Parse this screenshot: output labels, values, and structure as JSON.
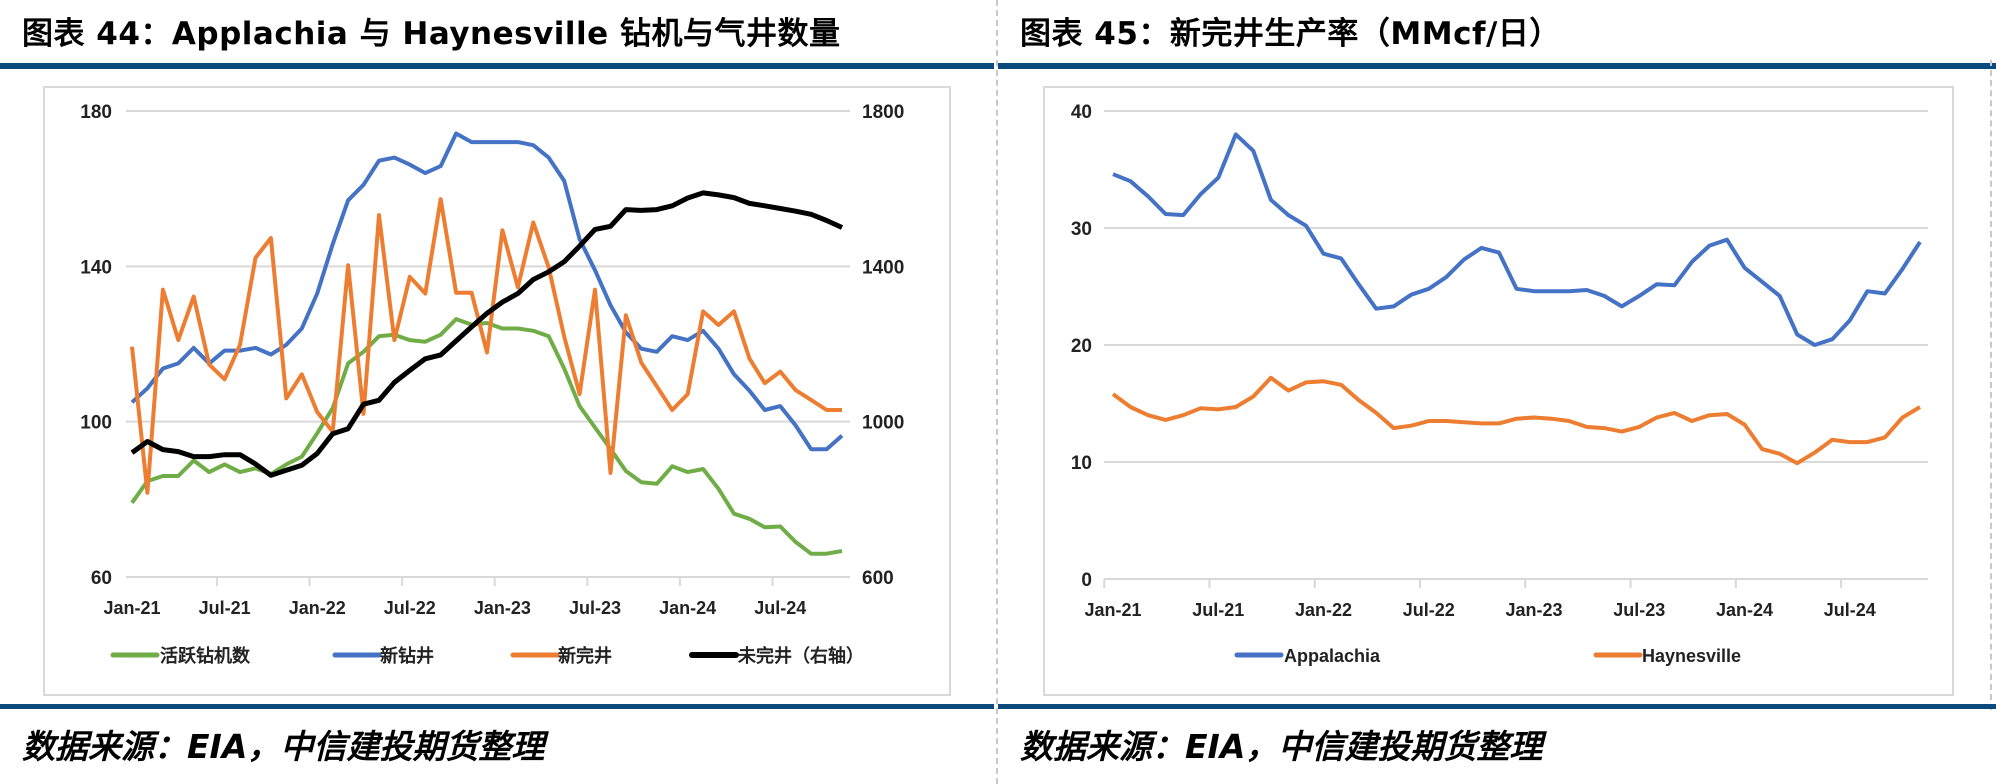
{
  "left_title": "图表 44：Applachia 与 Haynesville 钻机与气井数量",
  "right_title": "图表 45：新完井生产率（MMcf/日）",
  "left_footer": "数据来源：EIA，中信建投期货整理",
  "right_footer": "数据来源：EIA，中信建投期货整理",
  "colors": {
    "accent": "#0b4a7c",
    "green": "#70ad47",
    "blue": "#4472c4",
    "orange": "#ed7d31",
    "black": "#000000"
  },
  "chart_data": [
    {
      "type": "line",
      "title": "Applachia 与 Haynesville 钻机与气井数量",
      "x_start": "Jan-21",
      "n_points": 47,
      "x_tick_labels": [
        "Jan-21",
        "Jul-21",
        "Jan-22",
        "Jul-22",
        "Jan-23",
        "Jul-23",
        "Jan-24",
        "Jul-24"
      ],
      "ylim": [
        60,
        180
      ],
      "y_ticks": [
        "180",
        "140",
        "100",
        "60"
      ],
      "y2lim": [
        600,
        1800
      ],
      "y2_ticks": [
        "1800",
        "1400",
        "1000",
        "600"
      ],
      "grid": true,
      "legend": "bottom",
      "series": [
        {
          "name": "活跃钻机数",
          "axis": "left",
          "color": "#70ad47",
          "values": [
            79.1,
            84.7,
            86,
            86,
            90,
            87,
            89,
            87,
            88,
            86.5,
            89,
            91,
            97,
            103.5,
            115,
            118,
            122,
            122.4,
            121,
            120.6,
            122.4,
            126.4,
            125,
            125.4,
            124,
            124,
            123.4,
            122,
            113.7,
            104,
            98.5,
            93,
            87.3,
            84.4,
            84,
            88.5,
            87,
            87.8,
            82.7,
            76.3,
            75,
            72.8,
            73,
            69,
            66,
            66,
            66.7
          ]
        },
        {
          "name": "新钻井",
          "axis": "left",
          "color": "#4472c4",
          "values": [
            105,
            108.6,
            113.7,
            115,
            119,
            115,
            118.3,
            118.3,
            119,
            117.3,
            119.8,
            124,
            133,
            145.7,
            157,
            161,
            167.2,
            168,
            166.2,
            164,
            165.8,
            174.2,
            172,
            172,
            172,
            172,
            171.2,
            168,
            162,
            147,
            139,
            130,
            123,
            118.8,
            118,
            122,
            121,
            123.4,
            118.8,
            112.2,
            108,
            103,
            104,
            99,
            92.9,
            92.9,
            96.4
          ]
        },
        {
          "name": "新完井",
          "axis": "left",
          "color": "#ed7d31",
          "values": [
            119.3,
            81.7,
            134,
            121,
            132.2,
            114.7,
            110.9,
            119.8,
            142.2,
            147.3,
            106,
            112.2,
            102.5,
            97.4,
            140.3,
            102,
            153.2,
            121,
            137.3,
            133,
            157.3,
            133.2,
            133.2,
            117.8,
            149.3,
            134.6,
            151.3,
            139.7,
            121.9,
            107.1,
            134,
            86.8,
            127.4,
            115.2,
            109.1,
            103,
            107.1,
            128.4,
            124.9,
            128.4,
            116.3,
            109.9,
            112.9,
            108.1,
            105.6,
            103,
            103
          ]
        },
        {
          "name": "未完井（右轴）",
          "axis": "right",
          "color": "#000000",
          "values": [
            920,
            949,
            928,
            923,
            910,
            910,
            915,
            915,
            891,
            862,
            875,
            888,
            918,
            969,
            982,
            1045,
            1055,
            1101,
            1132,
            1162,
            1172,
            1208,
            1244,
            1279,
            1308,
            1330,
            1366,
            1386,
            1412,
            1452,
            1495,
            1503,
            1546,
            1544,
            1546,
            1556,
            1576,
            1589,
            1584,
            1577,
            1562,
            1556,
            1549,
            1542,
            1534,
            1518,
            1500
          ]
        }
      ]
    },
    {
      "type": "line",
      "title": "新完井生产率（MMcf/日）",
      "x_start": "Jan-21",
      "n_points": 47,
      "x_tick_labels": [
        "Jan-21",
        "Jul-21",
        "Jan-22",
        "Jul-22",
        "Jan-23",
        "Jul-23",
        "Jan-24",
        "Jul-24"
      ],
      "ylim": [
        0,
        40
      ],
      "y_ticks": [
        "40",
        "30",
        "20",
        "10",
        "0"
      ],
      "grid": true,
      "legend": "bottom",
      "series": [
        {
          "name": "Appalachia",
          "color": "#4472c4",
          "values": [
            34.6,
            34.0,
            32.7,
            31.2,
            31.1,
            32.9,
            34.3,
            38.0,
            36.6,
            32.4,
            31.1,
            30.2,
            27.8,
            27.4,
            25.2,
            23.1,
            23.3,
            24.3,
            24.8,
            25.8,
            27.3,
            28.3,
            27.9,
            24.8,
            24.6,
            24.6,
            24.6,
            24.7,
            24.2,
            23.3,
            24.2,
            25.2,
            25.1,
            27.1,
            28.5,
            29.0,
            26.6,
            25.4,
            24.2,
            20.9,
            20.0,
            20.5,
            22.1,
            24.6,
            24.4,
            26.5,
            28.8
          ]
        },
        {
          "name": "Haynesville",
          "color": "#ed7d31",
          "values": [
            15.8,
            14.7,
            14.0,
            13.6,
            14.0,
            14.6,
            14.5,
            14.7,
            15.6,
            17.2,
            16.1,
            16.8,
            16.9,
            16.6,
            15.3,
            14.2,
            12.9,
            13.1,
            13.5,
            13.5,
            13.4,
            13.3,
            13.3,
            13.7,
            13.8,
            13.7,
            13.5,
            13.0,
            12.9,
            12.6,
            13.0,
            13.8,
            14.2,
            13.5,
            14.0,
            14.1,
            13.2,
            11.1,
            10.7,
            9.9,
            10.8,
            11.9,
            11.7,
            11.7,
            12.1,
            13.8,
            14.7
          ]
        }
      ]
    }
  ]
}
